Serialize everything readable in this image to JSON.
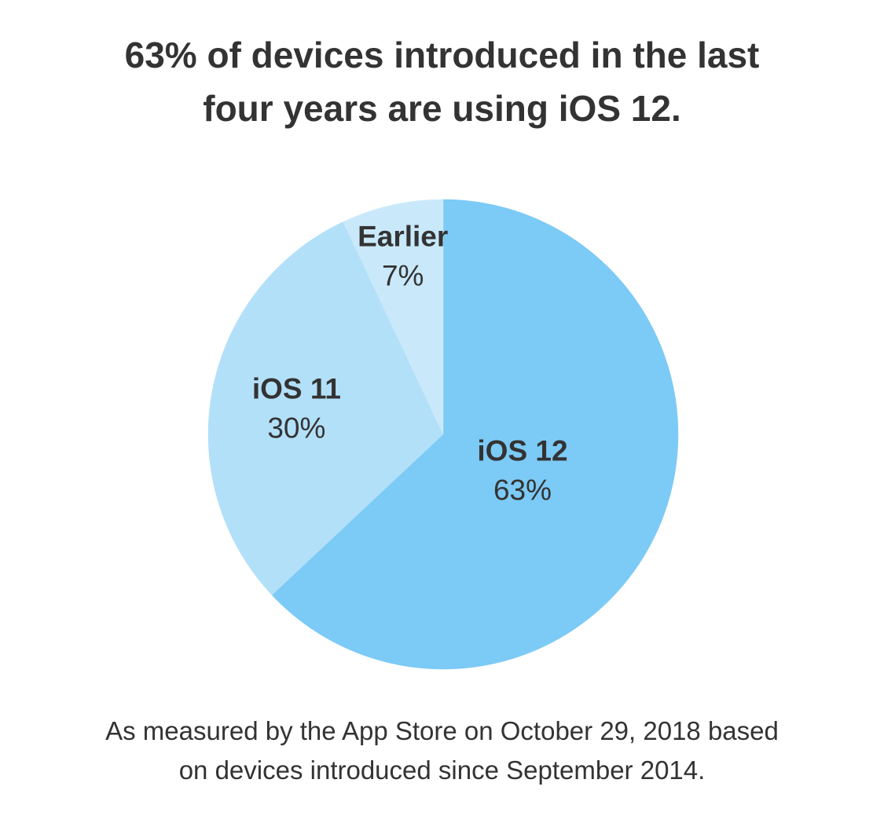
{
  "chart_data": {
    "type": "pie",
    "title": "63% of devices introduced in the last four years are using iOS 12.",
    "title_lines": [
      "63% of devices introduced in the last",
      "four years are using iOS 12."
    ],
    "slices": [
      {
        "label": "iOS 12",
        "value": 63,
        "display": "63%",
        "color": "#7ccaf6"
      },
      {
        "label": "iOS 11",
        "value": 30,
        "display": "30%",
        "color": "#b3e0f9"
      },
      {
        "label": "Earlier",
        "value": 7,
        "display": "7%",
        "color": "#c9e9fb"
      }
    ],
    "footnote_lines": [
      "As measured by the App Store on October 29, 2018 based",
      "on devices introduced since September 2014."
    ]
  }
}
